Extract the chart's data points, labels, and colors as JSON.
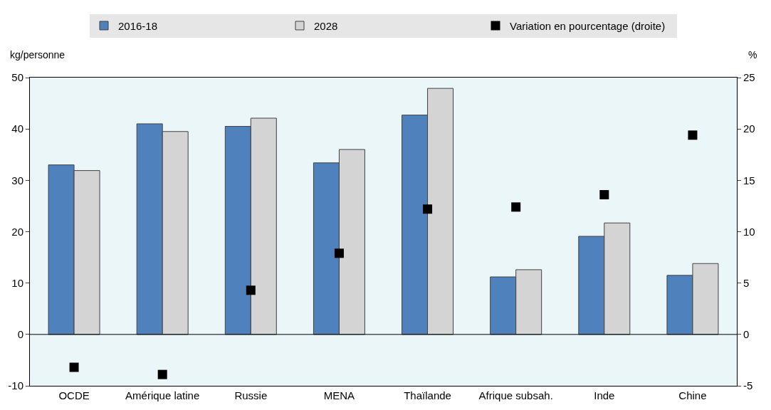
{
  "chart_data": {
    "type": "bar",
    "ylabel": "kg/personne",
    "y2label": "%",
    "categories": [
      "OCDE",
      "Amérique latine",
      "Russie",
      "MENA",
      "Thaïlande",
      "Afrique subsah.",
      "Inde",
      "Chine"
    ],
    "series": [
      {
        "name": "2016-18",
        "color": "#4f81bd",
        "values": [
          33.0,
          41.0,
          40.5,
          33.4,
          42.7,
          11.2,
          19.1,
          11.5
        ]
      },
      {
        "name": "2028",
        "color": "#d4d4d4",
        "values": [
          31.9,
          39.5,
          42.1,
          36.0,
          47.9,
          12.6,
          21.7,
          13.8
        ]
      },
      {
        "name": "Variation en pourcentage (droite)",
        "type": "scatter",
        "axis": "y2",
        "marker": "square",
        "color": "#000000",
        "values": [
          -3.2,
          -3.9,
          4.3,
          7.9,
          12.2,
          12.4,
          13.6,
          19.4
        ]
      }
    ],
    "ylim": [
      -10,
      50
    ],
    "yticks": [
      -10,
      0,
      10,
      20,
      30,
      40,
      50
    ],
    "y2lim": [
      -5,
      25
    ],
    "y2ticks": [
      -5,
      0,
      5,
      10,
      15,
      20,
      25
    ],
    "ref_lines": [
      {
        "axis": "y",
        "value": 0,
        "color": "#000000"
      }
    ],
    "grid": false,
    "legend": "top"
  }
}
